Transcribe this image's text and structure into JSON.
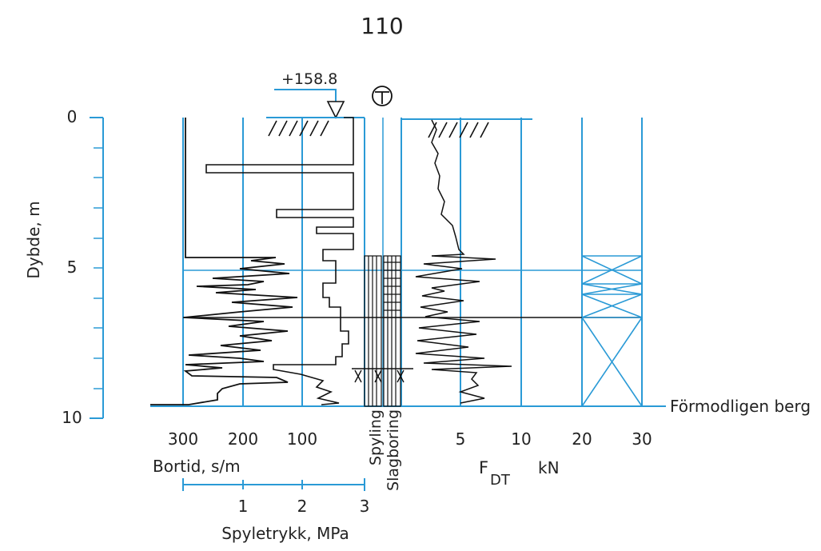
{
  "page_number": "110",
  "elevation_label": "+158.8",
  "station_symbol": "T",
  "depth_axis": {
    "label": "Dybde, m",
    "ticks": [
      "0",
      "5",
      "10"
    ]
  },
  "bortid_axis": {
    "label": "Bortid, s/m",
    "ticks": [
      "300",
      "200",
      "100"
    ]
  },
  "spyletrykk_axis": {
    "label": "Spyletrykk, MPa",
    "ticks": [
      "1",
      "2",
      "3"
    ]
  },
  "column_labels": {
    "spyling": "Spyling",
    "slagboring": "Slagboring"
  },
  "force_axis": {
    "label_main": "F",
    "label_sub": "DT",
    "unit": "kN",
    "ticks": [
      "5",
      "10",
      "20",
      "30"
    ]
  },
  "annotation": "Förmodligen berg",
  "colors": {
    "grid": "#2a9ad6",
    "trace": "#111111"
  }
}
